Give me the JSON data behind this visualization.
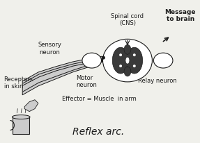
{
  "bg_color": "#f0f0eb",
  "title": "Reflex arc.",
  "title_fontsize": 10,
  "title_style": "italic",
  "labels": {
    "spinal_cord": "Spinal cord\n(CNS)",
    "message": "Message\nto brain",
    "sensory": "Sensory\nneuron",
    "motor": "Motor\nneuron",
    "relay": "Relay neuron",
    "receptors": "Receptors\nin skin",
    "effector": "Effector = Muscle  in arm"
  },
  "line_color": "#1a1a1a",
  "fill_dark": "#3a3a3a",
  "fill_mid": "#888888",
  "fill_light": "#cccccc",
  "fill_white": "#ffffff"
}
